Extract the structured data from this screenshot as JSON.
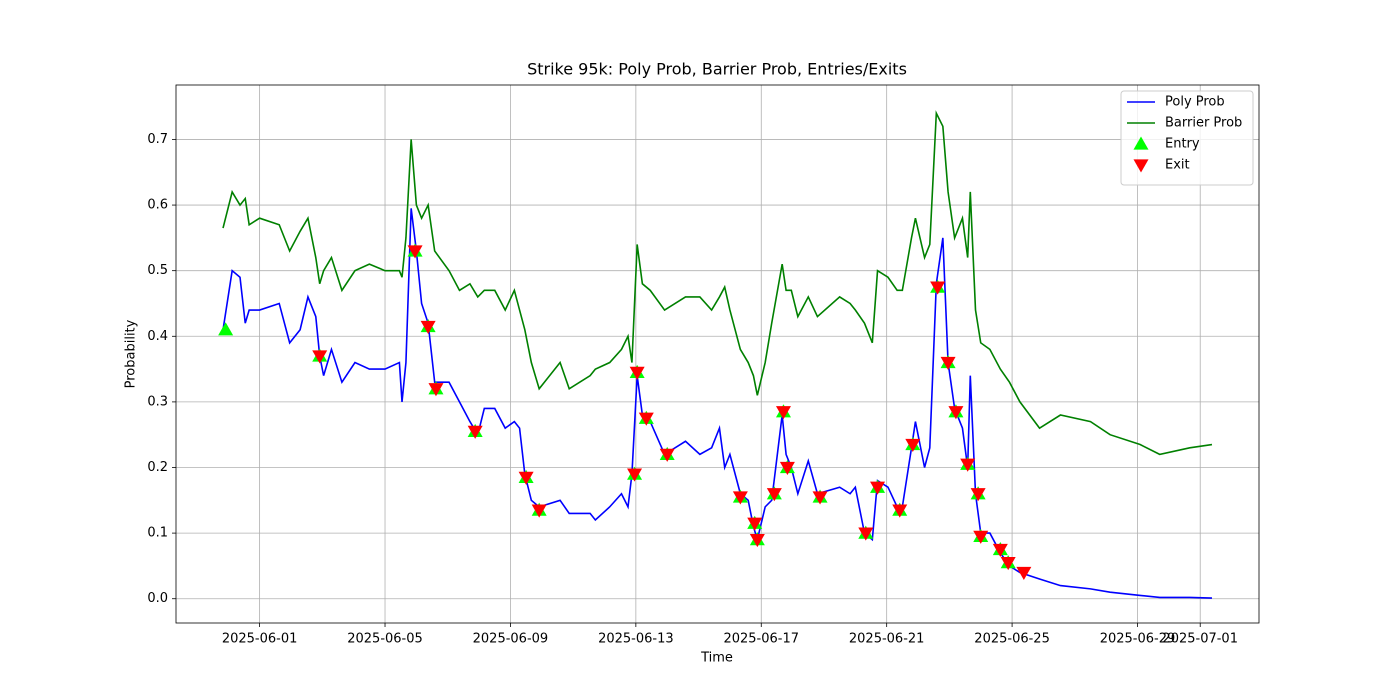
{
  "chart_data": {
    "type": "line",
    "title": "Strike 95k: Poly Prob, Barrier Prob, Entries/Exits",
    "xlabel": "Time",
    "ylabel": "Probability",
    "x": [
      "2025-05-30T20:00",
      "2025-05-31T03:00",
      "2025-05-31T09:00",
      "2025-05-31T13:00",
      "2025-05-31T16:00",
      "2025-06-01T00:00",
      "2025-06-01T15:00",
      "2025-06-01T23:00",
      "2025-06-02T07:00",
      "2025-06-02T13:00",
      "2025-06-02T19:00",
      "2025-06-02T22:00",
      "2025-06-03T01:00",
      "2025-06-03T07:00",
      "2025-06-03T15:00",
      "2025-06-04T01:00",
      "2025-06-04T12:00",
      "2025-06-05T00:00",
      "2025-06-05T11:00",
      "2025-06-05T13:00",
      "2025-06-05T16:00",
      "2025-06-05T20:00",
      "2025-06-06T00:00",
      "2025-06-06T04:00",
      "2025-06-06T09:00",
      "2025-06-06T14:00",
      "2025-06-07T01:00",
      "2025-06-07T09:00",
      "2025-06-07T17:00",
      "2025-06-07T23:00",
      "2025-06-08T04:00",
      "2025-06-08T12:00",
      "2025-06-08T20:00",
      "2025-06-09T03:00",
      "2025-06-09T07:00",
      "2025-06-09T11:00",
      "2025-06-09T16:00",
      "2025-06-09T22:00",
      "2025-06-10T14:00",
      "2025-06-10T21:00",
      "2025-06-11T13:00",
      "2025-06-11T17:00",
      "2025-06-12T04:00",
      "2025-06-12T13:00",
      "2025-06-12T18:00",
      "2025-06-12T21:00",
      "2025-06-13T01:00",
      "2025-06-13T05:00",
      "2025-06-13T11:00",
      "2025-06-13T22:00",
      "2025-06-14T14:00",
      "2025-06-15T01:00",
      "2025-06-15T10:00",
      "2025-06-15T16:00",
      "2025-06-15T20:00",
      "2025-06-16T00:00",
      "2025-06-16T08:00",
      "2025-06-16T14:00",
      "2025-06-16T18:00",
      "2025-06-16T21:00",
      "2025-06-17T03:00",
      "2025-06-17T08:00",
      "2025-06-17T16:00",
      "2025-06-17T19:00",
      "2025-06-17T23:00",
      "2025-06-18T04:00",
      "2025-06-18T12:00",
      "2025-06-18T19:00",
      "2025-06-19T12:00",
      "2025-06-19T20:00",
      "2025-06-20T00:00",
      "2025-06-20T07:00",
      "2025-06-20T13:00",
      "2025-06-20T17:00",
      "2025-06-21T01:00",
      "2025-06-21T08:00",
      "2025-06-21T12:00",
      "2025-06-21T19:00",
      "2025-06-21T22:00",
      "2025-06-22T05:00",
      "2025-06-22T09:00",
      "2025-06-22T14:00",
      "2025-06-22T19:00",
      "2025-06-22T23:00",
      "2025-06-23T04:00",
      "2025-06-23T10:00",
      "2025-06-23T14:00",
      "2025-06-23T16:00",
      "2025-06-23T20:00",
      "2025-06-24T00:00",
      "2025-06-24T07:00",
      "2025-06-24T15:00",
      "2025-06-24T22:00",
      "2025-06-25T06:00",
      "2025-06-25T21:00",
      "2025-06-26T13:00",
      "2025-06-27T12:00",
      "2025-06-28T03:00",
      "2025-06-29T02:00",
      "2025-06-29T17:00",
      "2025-06-30T16:00",
      "2025-07-01T09:00"
    ],
    "series": [
      {
        "name": "Poly Prob",
        "color": "#0000ff",
        "values": [
          0.41,
          0.5,
          0.49,
          0.42,
          0.44,
          0.44,
          0.45,
          0.39,
          0.41,
          0.46,
          0.43,
          0.37,
          0.34,
          0.38,
          0.33,
          0.36,
          0.35,
          0.35,
          0.36,
          0.3,
          0.36,
          0.595,
          0.53,
          0.45,
          0.42,
          0.33,
          0.33,
          0.3,
          0.27,
          0.25,
          0.29,
          0.29,
          0.26,
          0.27,
          0.26,
          0.19,
          0.15,
          0.14,
          0.15,
          0.13,
          0.13,
          0.12,
          0.14,
          0.16,
          0.14,
          0.19,
          0.34,
          0.28,
          0.27,
          0.22,
          0.24,
          0.22,
          0.23,
          0.26,
          0.2,
          0.22,
          0.16,
          0.15,
          0.11,
          0.09,
          0.14,
          0.15,
          0.28,
          0.22,
          0.2,
          0.16,
          0.21,
          0.16,
          0.17,
          0.16,
          0.17,
          0.1,
          0.09,
          0.18,
          0.17,
          0.14,
          0.14,
          0.23,
          0.27,
          0.2,
          0.23,
          0.48,
          0.55,
          0.36,
          0.29,
          0.26,
          0.2,
          0.34,
          0.16,
          0.1,
          0.1,
          0.07,
          0.05,
          0.04,
          0.03,
          0.02,
          0.015,
          0.01,
          0.005,
          0.002,
          0.002,
          0.001
        ]
      },
      {
        "name": "Barrier Prob",
        "color": "#008000",
        "values": [
          0.565,
          0.62,
          0.6,
          0.61,
          0.57,
          0.58,
          0.57,
          0.53,
          0.56,
          0.58,
          0.52,
          0.48,
          0.5,
          0.52,
          0.47,
          0.5,
          0.51,
          0.5,
          0.5,
          0.49,
          0.55,
          0.7,
          0.6,
          0.58,
          0.6,
          0.53,
          0.5,
          0.47,
          0.48,
          0.46,
          0.47,
          0.47,
          0.44,
          0.47,
          0.44,
          0.41,
          0.36,
          0.32,
          0.36,
          0.32,
          0.34,
          0.35,
          0.36,
          0.38,
          0.4,
          0.36,
          0.54,
          0.48,
          0.47,
          0.44,
          0.46,
          0.46,
          0.44,
          0.46,
          0.475,
          0.44,
          0.38,
          0.36,
          0.34,
          0.31,
          0.36,
          0.42,
          0.51,
          0.47,
          0.47,
          0.43,
          0.46,
          0.43,
          0.46,
          0.45,
          0.44,
          0.42,
          0.39,
          0.5,
          0.49,
          0.47,
          0.47,
          0.55,
          0.58,
          0.52,
          0.54,
          0.74,
          0.72,
          0.62,
          0.55,
          0.58,
          0.52,
          0.62,
          0.44,
          0.39,
          0.38,
          0.35,
          0.33,
          0.3,
          0.26,
          0.28,
          0.27,
          0.25,
          0.235,
          0.22,
          0.23,
          0.235
        ]
      }
    ],
    "markers": [
      {
        "name": "Entry",
        "color": "#00ff00",
        "marker": "triangle-up",
        "x": [
          "2025-05-30T22:00",
          "2025-06-02T22:00",
          "2025-06-05T23:00",
          "2025-06-06T09:00",
          "2025-06-06T15:00",
          "2025-06-07T21:00",
          "2025-06-09T12:00",
          "2025-06-09T22:00",
          "2025-06-12T23:00",
          "2025-06-13T01:00",
          "2025-06-13T08:00",
          "2025-06-14T00:00",
          "2025-06-16T08:00",
          "2025-06-16T19:00",
          "2025-06-16T21:00",
          "2025-06-17T10:00",
          "2025-06-17T17:00",
          "2025-06-17T20:00",
          "2025-06-18T21:00",
          "2025-06-20T08:00",
          "2025-06-20T17:00",
          "2025-06-21T10:00",
          "2025-06-21T20:00",
          "2025-06-22T15:00",
          "2025-06-22T23:00",
          "2025-06-23T05:00",
          "2025-06-23T14:00",
          "2025-06-23T22:00",
          "2025-06-24T00:00",
          "2025-06-24T15:00",
          "2025-06-24T21:00"
        ],
        "values": [
          0.41,
          0.37,
          0.53,
          0.415,
          0.32,
          0.255,
          0.185,
          0.135,
          0.19,
          0.345,
          0.275,
          0.22,
          0.155,
          0.115,
          0.09,
          0.16,
          0.285,
          0.2,
          0.155,
          0.1,
          0.17,
          0.135,
          0.235,
          0.475,
          0.36,
          0.285,
          0.205,
          0.16,
          0.095,
          0.075,
          0.055
        ]
      },
      {
        "name": "Exit",
        "color": "#ff0000",
        "marker": "triangle-down",
        "x": [
          "2025-06-02T22:00",
          "2025-06-05T23:00",
          "2025-06-06T09:00",
          "2025-06-06T15:00",
          "2025-06-07T21:00",
          "2025-06-09T12:00",
          "2025-06-09T22:00",
          "2025-06-12T23:00",
          "2025-06-13T01:00",
          "2025-06-13T08:00",
          "2025-06-14T00:00",
          "2025-06-16T08:00",
          "2025-06-16T19:00",
          "2025-06-16T21:00",
          "2025-06-17T10:00",
          "2025-06-17T17:00",
          "2025-06-17T20:00",
          "2025-06-18T21:00",
          "2025-06-20T08:00",
          "2025-06-20T17:00",
          "2025-06-21T10:00",
          "2025-06-21T20:00",
          "2025-06-22T15:00",
          "2025-06-22T23:00",
          "2025-06-23T05:00",
          "2025-06-23T14:00",
          "2025-06-23T22:00",
          "2025-06-24T00:00",
          "2025-06-24T15:00",
          "2025-06-24T21:00",
          "2025-06-25T09:00"
        ],
        "values": [
          0.37,
          0.53,
          0.415,
          0.32,
          0.255,
          0.185,
          0.135,
          0.19,
          0.345,
          0.275,
          0.22,
          0.155,
          0.115,
          0.09,
          0.16,
          0.285,
          0.2,
          0.155,
          0.1,
          0.17,
          0.135,
          0.235,
          0.475,
          0.36,
          0.285,
          0.205,
          0.16,
          0.095,
          0.075,
          0.055,
          0.04
        ]
      }
    ],
    "xlim": [
      "2025-05-29T08:00",
      "2025-07-02T21:00"
    ],
    "xticks": [
      "2025-06-01",
      "2025-06-05",
      "2025-06-09",
      "2025-06-13",
      "2025-06-17",
      "2025-06-21",
      "2025-06-25",
      "2025-06-29",
      "2025-07-01"
    ],
    "ylim": [
      -0.037,
      0.783
    ],
    "yticks": [
      {
        "value": 0,
        "label": "0.0"
      },
      0.1,
      0.2,
      0.3,
      0.4,
      0.5,
      0.6,
      0.7
    ],
    "grid": true,
    "legend": "upper right"
  }
}
